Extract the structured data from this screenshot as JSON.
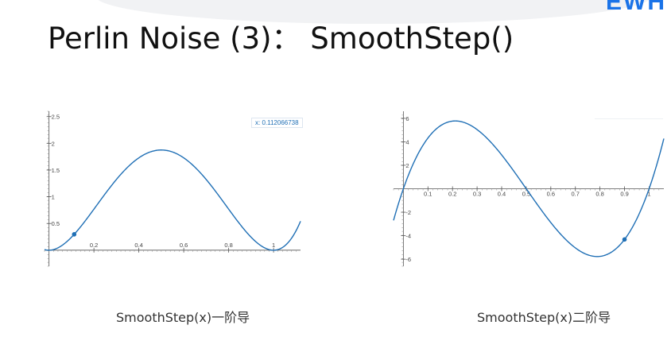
{
  "logo": "EWH",
  "title": "Perlin Noise (3)： SmoothStep()",
  "captions": {
    "left": "SmoothStep(x)一阶导",
    "right": "SmoothStep(x)二阶导"
  },
  "chart_data": [
    {
      "type": "line",
      "function": "30x^2(1-x)^2 - derivative of 6x^5-15x^4+10x^3",
      "xlim": [
        -0.02,
        1.12
      ],
      "ylim": [
        -0.3,
        2.6
      ],
      "x_ticks": [
        0.2,
        0.4,
        0.6,
        0.8,
        1
      ],
      "x_tick_labels": [
        "0.2",
        "0.4",
        "0.6",
        "0.8",
        "1"
      ],
      "y_ticks": [
        0.5,
        1,
        1.5,
        2,
        2.5
      ],
      "y_tick_labels": [
        "0.5",
        "1",
        "1.5",
        "2",
        "2.5"
      ],
      "highlight_point": {
        "x": 0.112066738,
        "y": 0.297
      },
      "readout": "x: 0.112066738",
      "color": "#1f6fb5"
    },
    {
      "type": "line",
      "function": "60x(1-x)(1-2x) - second derivative",
      "xlim": [
        -0.04,
        1.06
      ],
      "ylim": [
        -6.6,
        6.6
      ],
      "x_ticks": [
        0.1,
        0.2,
        0.3,
        0.4,
        0.5,
        0.6,
        0.7,
        0.8,
        0.9,
        1
      ],
      "x_tick_labels": [
        "0.1",
        "0.2",
        "0.3",
        "0.4",
        "0.5",
        "0.6",
        "0.7",
        "0.8",
        "0.9",
        "1"
      ],
      "y_ticks": [
        -6,
        -4,
        -2,
        2,
        4,
        6
      ],
      "y_tick_labels": [
        "-6",
        "-4",
        "-2",
        "2",
        "4",
        "6"
      ],
      "highlight_point": {
        "x": 0.9,
        "y": -4.32
      },
      "color": "#1f6fb5"
    }
  ]
}
